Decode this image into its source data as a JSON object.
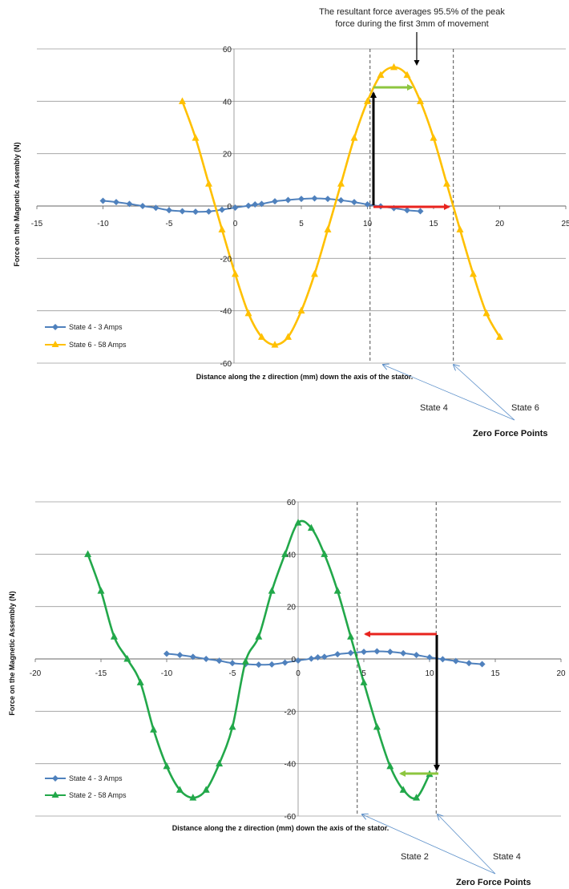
{
  "chart_data": [
    {
      "type": "line",
      "xlabel": "Distance along the z direction (mm) down the axis of the stator.",
      "ylabel": "Force on the Magnetic Assembly (N)",
      "xlim": [
        -15,
        25
      ],
      "ylim": [
        -60,
        60
      ],
      "xticks": [
        -15,
        -10,
        -5,
        0,
        5,
        10,
        15,
        20,
        25
      ],
      "yticks": [
        -60,
        -40,
        -20,
        0,
        20,
        40,
        60
      ],
      "grid": "horizontal",
      "legend_position": "bottom-left",
      "series": [
        {
          "name": "State 4 - 3 Amps",
          "color": "#4f81bd",
          "marker": "diamond",
          "x": [
            -10,
            -9,
            -8,
            -7,
            -6,
            -5,
            -4,
            -3,
            -2,
            -1,
            0,
            1,
            1.5,
            2,
            3,
            4,
            5,
            6,
            7,
            8,
            9,
            10,
            11,
            12,
            13,
            14
          ],
          "y": [
            2,
            1.5,
            0.8,
            0,
            -0.7,
            -1.6,
            -2,
            -2.2,
            -2.1,
            -1.4,
            -0.6,
            0.1,
            0.6,
            0.8,
            1.8,
            2.3,
            2.7,
            2.9,
            2.7,
            2.2,
            1.5,
            0.6,
            -0.1,
            -0.8,
            -1.6,
            -2
          ]
        },
        {
          "name": "State 6 - 58 Amps",
          "color": "#ffc000",
          "marker": "triangle",
          "x": [
            -4,
            -3,
            -2,
            -1,
            0,
            1,
            2,
            3,
            4,
            5,
            6,
            7,
            8,
            9,
            10,
            11,
            12,
            13,
            14,
            15,
            16,
            17,
            18,
            19,
            20
          ],
          "y": [
            40,
            26,
            8.5,
            -9,
            -26,
            -41,
            -50,
            -53,
            -50,
            -40,
            -26,
            -9,
            8.5,
            26,
            40,
            50,
            53,
            50,
            40,
            26,
            8.5,
            -9,
            -26,
            -41,
            -50
          ]
        }
      ],
      "guide_lines_x": [
        10.2,
        16.5
      ],
      "annotations": {
        "top_note_line1": "The resultant force averages 95.5% of the peak",
        "top_note_line2": "force during the first 3mm of movement",
        "zero_label_a": "State 4",
        "zero_label_b": "State 6",
        "zero_title": "Zero Force Points"
      }
    },
    {
      "type": "line",
      "xlabel": "Distance along the z direction (mm) down the axis of the stator.",
      "ylabel": "Force on the Magnetic Assembly (N)",
      "xlim": [
        -20,
        20
      ],
      "ylim": [
        -60,
        60
      ],
      "xticks": [
        -20,
        -15,
        -10,
        -5,
        0,
        5,
        10,
        15,
        20
      ],
      "yticks": [
        -60,
        -40,
        -20,
        0,
        20,
        40,
        60
      ],
      "grid": "horizontal",
      "legend_position": "bottom-left",
      "series": [
        {
          "name": "State 4 - 3 Amps",
          "color": "#4f81bd",
          "marker": "diamond",
          "x": [
            -10,
            -9,
            -8,
            -7,
            -6,
            -5,
            -4,
            -3,
            -2,
            -1,
            0,
            1,
            1.5,
            2,
            3,
            4,
            5,
            6,
            7,
            8,
            9,
            10,
            11,
            12,
            13,
            14
          ],
          "y": [
            2,
            1.5,
            0.8,
            0,
            -0.7,
            -1.6,
            -2,
            -2.2,
            -2.1,
            -1.4,
            -0.6,
            0.1,
            0.6,
            0.8,
            1.8,
            2.3,
            2.7,
            2.9,
            2.7,
            2.2,
            1.5,
            0.6,
            -0.1,
            -0.8,
            -1.6,
            -2
          ]
        },
        {
          "name": "State 2 - 58 Amps",
          "color": "#22a84a",
          "marker": "triangle",
          "x": [
            -16,
            -15,
            -14,
            -13,
            -12,
            -11,
            -10,
            -9,
            -8,
            -7,
            -6,
            -5,
            -4,
            -3,
            -2,
            -1,
            0,
            1,
            2,
            3,
            4,
            5,
            6,
            7,
            8,
            9,
            10
          ],
          "y": [
            40,
            26,
            8.5,
            0,
            -9,
            -27,
            -41,
            -50,
            -53,
            -50,
            -40,
            -26,
            -1,
            8.5,
            26,
            40,
            52,
            50,
            40,
            26,
            8.5,
            -9,
            -26,
            -41,
            -50,
            -53,
            -44
          ]
        }
      ],
      "guide_lines_x": [
        4.5,
        10.5
      ],
      "annotations": {
        "zero_label_a": "State 2",
        "zero_label_b": "State 4",
        "zero_title": "Zero Force Points"
      }
    }
  ]
}
